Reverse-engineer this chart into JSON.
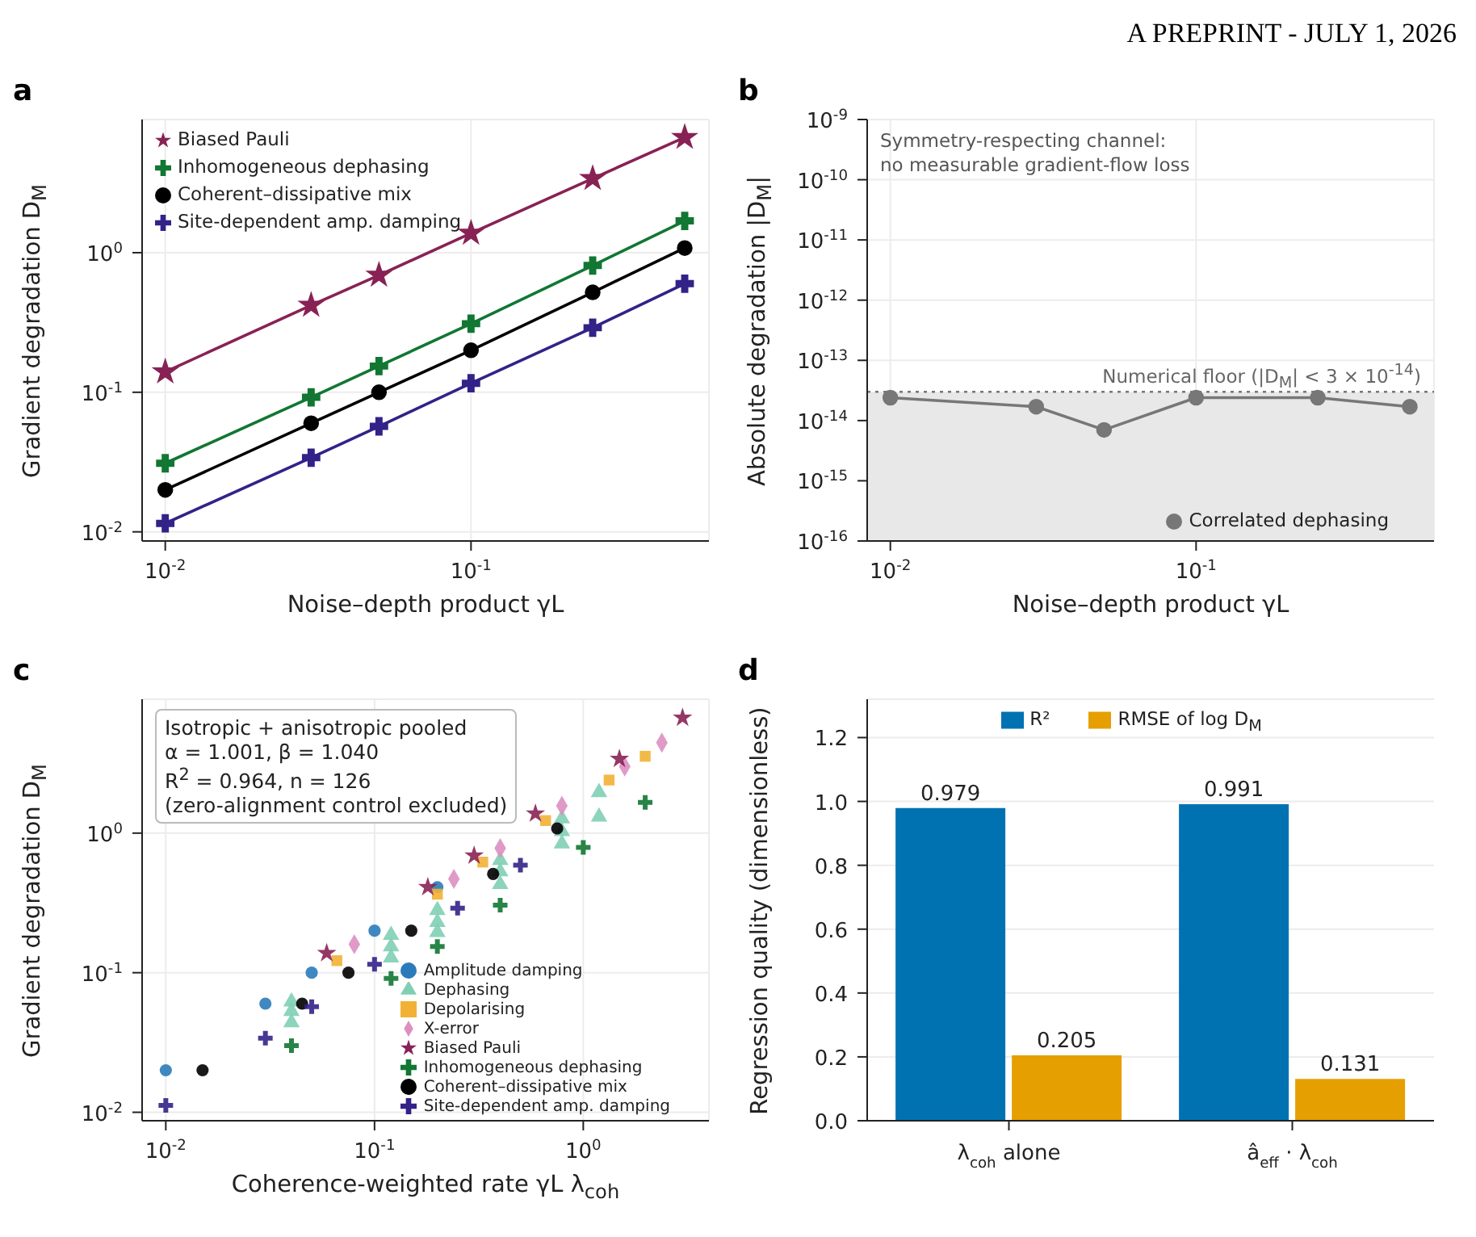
{
  "chart_data": [
    {
      "type": "line",
      "title": "a",
      "xlabel": "Noise–depth product γL",
      "ylabel": "Gradient degradation D$_{M}$",
      "annotations": [
        "A PREPRINT - JULY 1, 2026"
      ],
      "log": "xy",
      "xlim": [
        0.0084,
        0.6
      ],
      "xticks": [
        {
          "value": 0.01,
          "label": "10$^{-2}$"
        },
        {
          "value": 0.1,
          "label": "10$^{-1}$"
        }
      ],
      "ylim": [
        0.0086,
        9
      ],
      "yticks": [
        {
          "value": 0.01,
          "label": "10$^{-2}$"
        },
        {
          "value": 0.1,
          "label": "10$^{-1}$"
        },
        {
          "value": 1,
          "label": "10$^{0}$"
        }
      ],
      "grid": true,
      "legend": "top left",
      "line_style": "solid",
      "x": [
        0.01,
        0.03,
        0.05,
        0.1,
        0.25,
        0.5
      ],
      "series": [
        {
          "name": "Biased Pauli",
          "color": "#882255",
          "marker": "star",
          "values": [
            0.14,
            0.42,
            0.69,
            1.38,
            3.4,
            6.7
          ]
        },
        {
          "name": "Inhomogeneous dephasing",
          "color": "#117733",
          "marker": "cross",
          "values": [
            0.031,
            0.092,
            0.154,
            0.31,
            0.81,
            1.69
          ]
        },
        {
          "name": "Coherent–dissipative mix",
          "color": "#000000",
          "marker": "circle",
          "values": [
            0.02,
            0.06,
            0.1,
            0.2,
            0.52,
            1.08
          ]
        },
        {
          "name": "Site-dependent amp. damping",
          "color": "#332288",
          "marker": "cross",
          "values": [
            0.0115,
            0.034,
            0.057,
            0.116,
            0.29,
            0.6
          ]
        }
      ]
    },
    {
      "type": "line",
      "title": "b",
      "xlabel": "Noise–depth product γL",
      "ylabel": "Absolute degradation |D$_{M}$|",
      "annotations": [
        "Symmetry-respecting channel:\nno measurable gradient-flow loss"
      ],
      "log": "xy",
      "xlim": [
        0.0084,
        0.6
      ],
      "xticks": [
        {
          "value": 0.01,
          "label": "10$^{-2}$"
        },
        {
          "value": 0.1,
          "label": "10$^{-1}$"
        }
      ],
      "ylim": [
        1e-16,
        1e-09
      ],
      "yticks": [
        {
          "value": 1e-16,
          "label": "10$^{-16}$"
        },
        {
          "value": 1e-15,
          "label": "10$^{-15}$"
        },
        {
          "value": 1e-14,
          "label": "10$^{-14}$"
        },
        {
          "value": 1e-13,
          "label": "10$^{-13}$"
        },
        {
          "value": 1e-12,
          "label": "10$^{-12}$"
        },
        {
          "value": 1e-11,
          "label": "10$^{-11}$"
        },
        {
          "value": 1e-10,
          "label": "10$^{-10}$"
        },
        {
          "value": 1e-09,
          "label": "10$^{-9}$"
        }
      ],
      "grid": true,
      "legend": "bottom right",
      "marker": "circle",
      "line_style": "solid",
      "x": [
        0.01,
        0.03,
        0.05,
        0.1,
        0.25,
        0.5
      ],
      "series": [
        {
          "name": "Correlated dephasing",
          "color": "#777777",
          "values": [
            2.4e-14,
            1.7e-14,
            7e-15,
            2.4e-14,
            2.4e-14,
            1.7e-14
          ]
        }
      ],
      "ref_lines": [
        {
          "axis": "y",
          "value": 3e-14,
          "label": "Numerical floor (|D$_{M}$| < 3 × 10$^{-14}$)",
          "line_style": "dotted",
          "color": "#777777"
        }
      ],
      "bands": [
        {
          "axis": "y",
          "from": 1e-16,
          "to": 3e-14,
          "color": "#e8e8e8"
        }
      ]
    },
    {
      "type": "scatter",
      "title": "c",
      "xlabel": "Coherence-weighted rate γL λ$_{coh}$",
      "ylabel": "Gradient degradation D$_{M}$",
      "annotations": [
        "Isotropic + anisotropic pooled\nα = 1.001, β = 1.040\nR$^{2}$ = 0.964, n = 126\n(zero-alignment control excluded)"
      ],
      "log": "xy",
      "xlim": [
        0.0077,
        4
      ],
      "xticks": [
        {
          "value": 0.01,
          "label": "10$^{-2}$"
        },
        {
          "value": 0.1,
          "label": "10$^{-1}$"
        },
        {
          "value": 1,
          "label": "10$^{0}$"
        }
      ],
      "ylim": [
        0.0087,
        9.1
      ],
      "yticks": [
        {
          "value": 0.01,
          "label": "10$^{-2}$"
        },
        {
          "value": 0.1,
          "label": "10$^{-1}$"
        },
        {
          "value": 1,
          "label": "10$^{0}$"
        }
      ],
      "grid": true,
      "legend": "bottom right",
      "series": [
        {
          "name": "Amplitude damping",
          "color": "#2b7bba",
          "marker": "circle",
          "x": [
            0.01,
            0.03,
            0.05,
            0.1,
            0.2
          ],
          "values": [
            0.02,
            0.06,
            0.1,
            0.2,
            0.41
          ]
        },
        {
          "name": "Dephasing",
          "color": "#80cfb4",
          "marker": "triangle",
          "x": [
            0.04,
            0.04,
            0.04,
            0.12,
            0.12,
            0.12,
            0.2,
            0.2,
            0.2,
            0.4,
            0.4,
            0.4,
            0.79,
            0.79,
            0.79,
            1.19,
            1.19
          ],
          "values": [
            0.062,
            0.053,
            0.044,
            0.186,
            0.154,
            0.128,
            0.28,
            0.23,
            0.195,
            0.64,
            0.53,
            0.43,
            1.27,
            1.03,
            0.84,
            1.96,
            1.31
          ]
        },
        {
          "name": "Depolarising",
          "color": "#f2b134",
          "marker": "square",
          "x": [
            0.066,
            0.2,
            0.33,
            0.66,
            1.33,
            1.98
          ],
          "values": [
            0.122,
            0.365,
            0.62,
            1.23,
            2.4,
            3.55
          ]
        },
        {
          "name": "X-error",
          "color": "#dd8fc2",
          "marker": "diamond",
          "x": [
            0.08,
            0.24,
            0.4,
            0.79,
            1.58,
            2.38
          ],
          "values": [
            0.16,
            0.47,
            0.78,
            1.57,
            3.0,
            4.45
          ]
        },
        {
          "name": "Biased Pauli",
          "color": "#882255",
          "marker": "star",
          "x": [
            0.059,
            0.18,
            0.3,
            0.59,
            1.49,
            2.99
          ],
          "values": [
            0.138,
            0.41,
            0.69,
            1.38,
            3.4,
            6.7
          ]
        },
        {
          "name": "Inhomogeneous dephasing",
          "color": "#117733",
          "marker": "cross",
          "x": [
            0.04,
            0.12,
            0.2,
            0.4,
            1.0,
            1.98
          ],
          "values": [
            0.03,
            0.091,
            0.154,
            0.305,
            0.79,
            1.66
          ]
        },
        {
          "name": "Coherent–dissipative mix",
          "color": "#000000",
          "marker": "circle",
          "x": [
            0.015,
            0.045,
            0.075,
            0.15,
            0.37,
            0.75
          ],
          "values": [
            0.02,
            0.06,
            0.1,
            0.2,
            0.51,
            1.08
          ]
        },
        {
          "name": "Site-dependent amp. damping",
          "color": "#332288",
          "marker": "cross",
          "x": [
            0.01,
            0.03,
            0.05,
            0.1,
            0.25,
            0.5
          ],
          "values": [
            0.0112,
            0.034,
            0.057,
            0.115,
            0.29,
            0.59
          ]
        }
      ]
    },
    {
      "type": "bar",
      "title": "d",
      "ylabel": "Regression quality (dimensionless)",
      "categories": [
        "λ$_{coh}$ alone",
        "â$_{eff}$ · λ$_{coh}$"
      ],
      "ylim": [
        0,
        1.32
      ],
      "yticks": [
        {
          "value": 0,
          "label": "0.0"
        },
        0.2,
        0.4,
        0.6,
        0.8,
        {
          "value": 1,
          "label": "1.0"
        },
        1.2
      ],
      "grid": "y",
      "legend": "top",
      "data_labels": true,
      "series": [
        {
          "name": "R²",
          "color": "#0072b2",
          "values": [
            0.979,
            0.991
          ]
        },
        {
          "name": "RMSE of log D$_{M}$",
          "color": "#e69f00",
          "values": [
            0.205,
            0.131
          ]
        }
      ]
    }
  ]
}
